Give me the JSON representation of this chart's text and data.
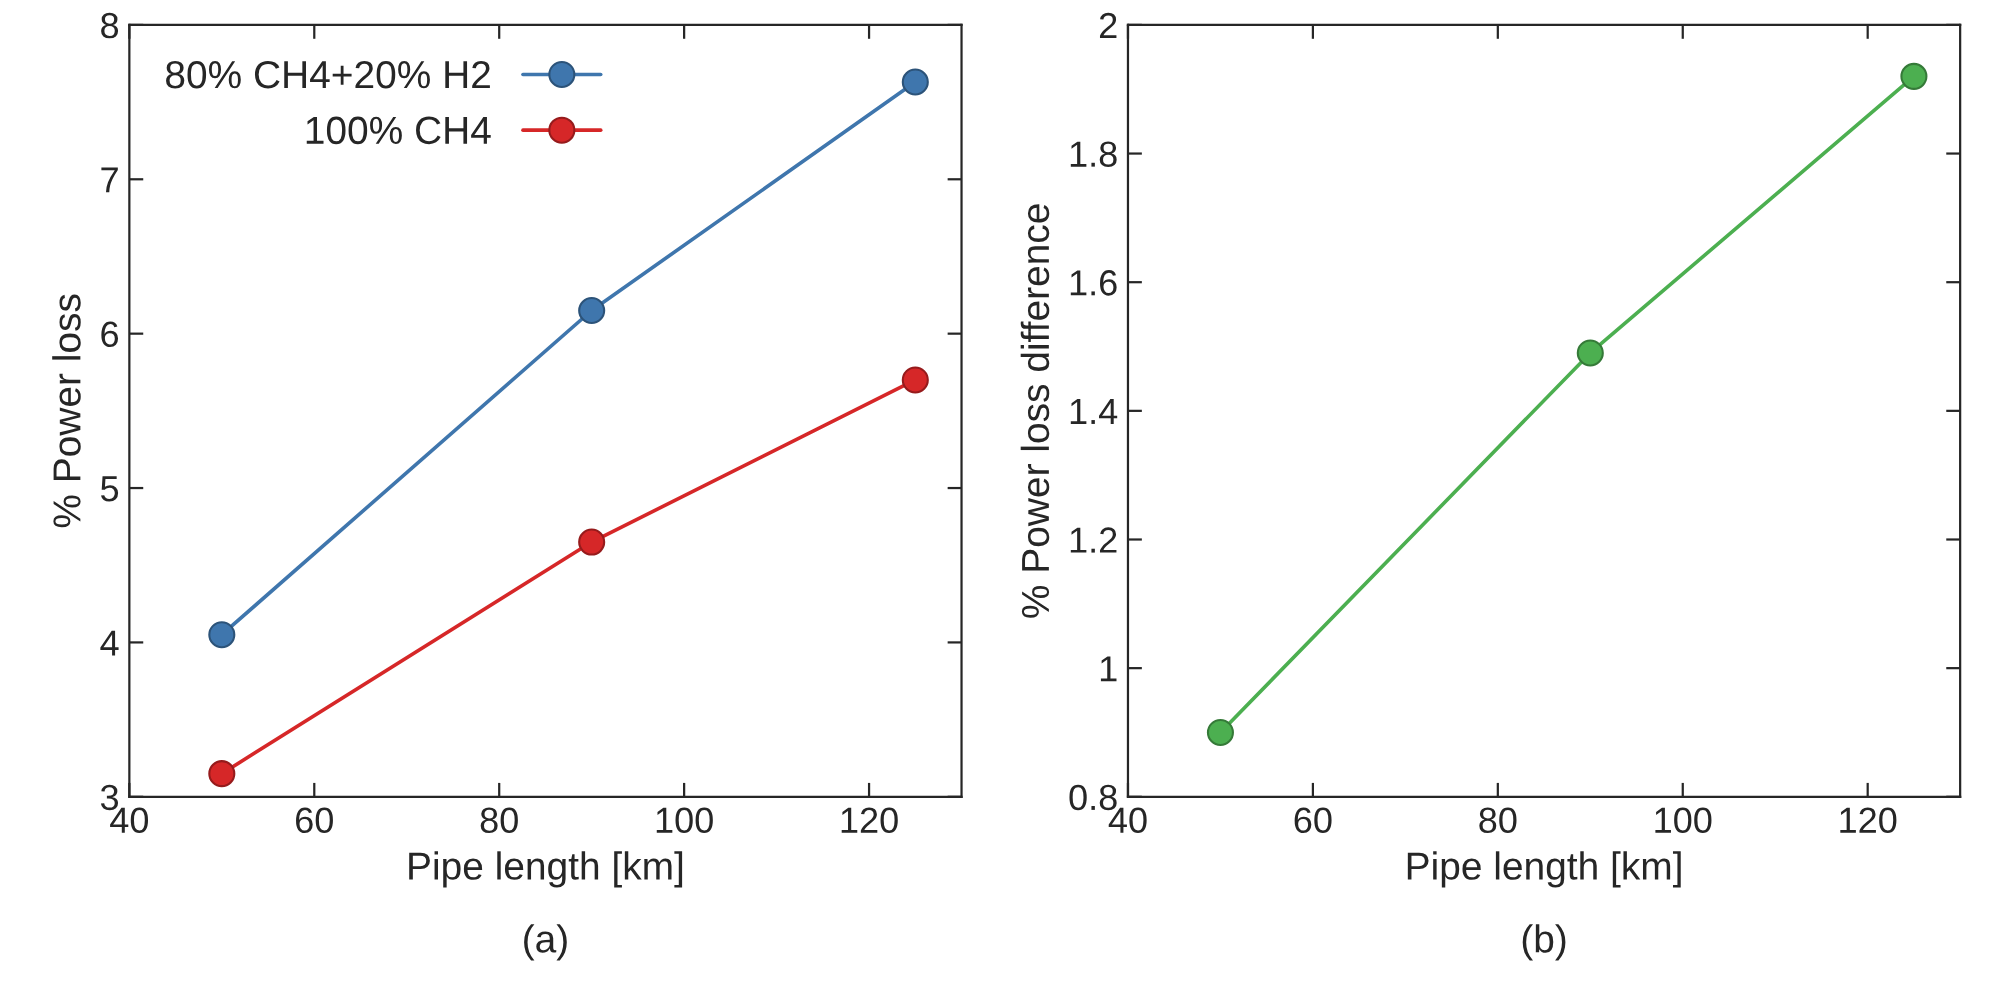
{
  "chart_data": [
    {
      "type": "line",
      "xlabel": "Pipe length [km]",
      "ylabel": "% Power loss",
      "x": [
        50,
        90,
        125
      ],
      "series": [
        {
          "name": "80% CH4+20% H2",
          "color": "#3f76ad",
          "values": [
            4.05,
            6.15,
            7.63
          ]
        },
        {
          "name": "100% CH4",
          "color": "#d62728",
          "values": [
            3.15,
            4.65,
            5.7
          ]
        }
      ],
      "xlim": [
        40,
        130
      ],
      "xticks": [
        40,
        60,
        80,
        100,
        120
      ],
      "ylim": [
        3,
        8
      ],
      "yticks": [
        3,
        4,
        5,
        6,
        7,
        8
      ],
      "marker": "circle",
      "legend": "top left",
      "grid": false,
      "annotations": [
        "(a)"
      ]
    },
    {
      "type": "line",
      "xlabel": "Pipe length [km]",
      "ylabel": "% Power loss difference",
      "x": [
        50,
        90,
        125
      ],
      "series": [
        {
          "color": "#4caf50",
          "values": [
            0.9,
            1.49,
            1.92
          ]
        }
      ],
      "xlim": [
        40,
        130
      ],
      "xticks": [
        40,
        60,
        80,
        100,
        120
      ],
      "ylim": [
        0.8,
        2
      ],
      "yticks": [
        0.8,
        1,
        1.2,
        1.4,
        1.6,
        1.8,
        2
      ],
      "marker": "circle",
      "grid": false,
      "annotations": [
        "(b)"
      ]
    }
  ]
}
